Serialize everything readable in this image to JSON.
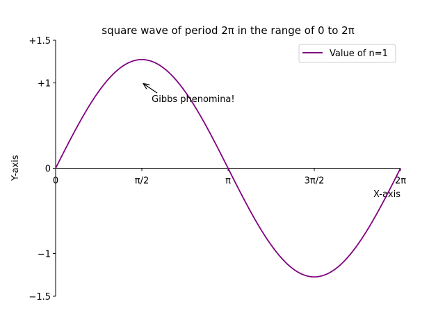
{
  "chart_data": {
    "type": "line",
    "title": "square wave of period 2π in the range of 0 to 2π",
    "xlabel": "X-axis",
    "ylabel": "Y-axis",
    "xlim": [
      0,
      6.283185307
    ],
    "ylim": [
      -1.5,
      1.5
    ],
    "x_ticks": [
      {
        "value": 0,
        "label": "0"
      },
      {
        "value": 1.570796327,
        "label": "π/2"
      },
      {
        "value": 3.141592654,
        "label": "π"
      },
      {
        "value": 4.71238898,
        "label": "3π/2"
      },
      {
        "value": 6.283185307,
        "label": "2π"
      }
    ],
    "y_ticks": [
      {
        "value": 1.5,
        "label": "+1.5"
      },
      {
        "value": 1,
        "label": "+1"
      },
      {
        "value": 0,
        "label": "0"
      },
      {
        "value": -1,
        "label": "−1"
      },
      {
        "value": -1.5,
        "label": "−1.5"
      }
    ],
    "series": [
      {
        "name": "Value of n=1",
        "color": "#800080",
        "function": "(4/pi)*sin(x)",
        "x": [
          0,
          0.3927,
          0.7854,
          1.1781,
          1.5708,
          1.9635,
          2.3562,
          2.7489,
          3.1416,
          3.5343,
          3.927,
          4.3197,
          4.7124,
          5.1051,
          5.4978,
          5.8905,
          6.2832
        ],
        "values": [
          0,
          0.487,
          0.9,
          1.176,
          1.273,
          1.176,
          0.9,
          0.487,
          0,
          -0.487,
          -0.9,
          -1.176,
          -1.273,
          -1.176,
          -0.9,
          -0.487,
          0
        ]
      }
    ],
    "legend": {
      "placement": "upper-right",
      "label": "Value of n=1"
    },
    "annotation": {
      "text": "Gibbs phenomina!",
      "point": [
        1.570796327,
        1.0
      ],
      "text_pos": [
        1.75,
        0.8
      ]
    },
    "grid": false
  }
}
